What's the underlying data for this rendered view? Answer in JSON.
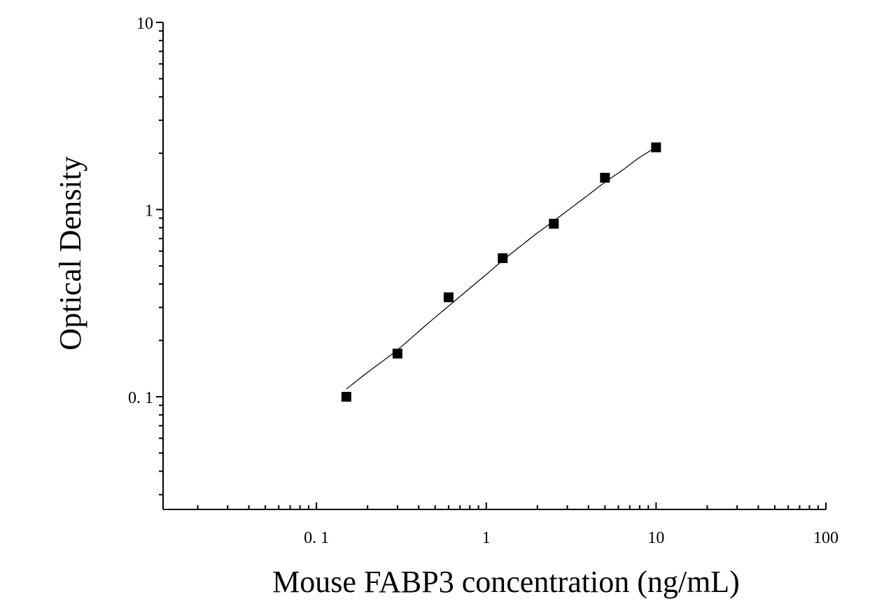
{
  "chart_data": {
    "type": "scatter",
    "xlabel": "Mouse FABP3 concentration (ng/mL)",
    "ylabel": "Optical Density",
    "xscale": "log",
    "yscale": "log",
    "xlim": [
      0.0125,
      100
    ],
    "ylim": [
      0.025,
      10
    ],
    "x_ticks": [
      0.1,
      1,
      10,
      100
    ],
    "x_tick_labels": [
      "0. 1",
      "1",
      "10",
      "100"
    ],
    "y_ticks": [
      0.1,
      1,
      10
    ],
    "y_tick_labels": [
      "0. 1",
      "1",
      "10"
    ],
    "grid": false,
    "legend": false,
    "points": {
      "x": [
        0.15,
        0.3,
        0.6,
        1.25,
        2.5,
        5,
        10
      ],
      "y": [
        0.1,
        0.17,
        0.34,
        0.55,
        0.84,
        1.48,
        2.15
      ]
    },
    "fit_curve": {
      "type": "smooth-fit",
      "x": [
        0.15,
        0.2,
        0.3,
        0.45,
        0.6,
        0.8,
        1.0,
        1.25,
        1.6,
        2.0,
        2.5,
        3.2,
        4.0,
        5.0,
        6.5,
        8.0,
        10
      ],
      "y": [
        0.11,
        0.135,
        0.178,
        0.245,
        0.305,
        0.38,
        0.45,
        0.535,
        0.64,
        0.75,
        0.87,
        1.03,
        1.2,
        1.4,
        1.65,
        1.9,
        2.15
      ]
    }
  }
}
